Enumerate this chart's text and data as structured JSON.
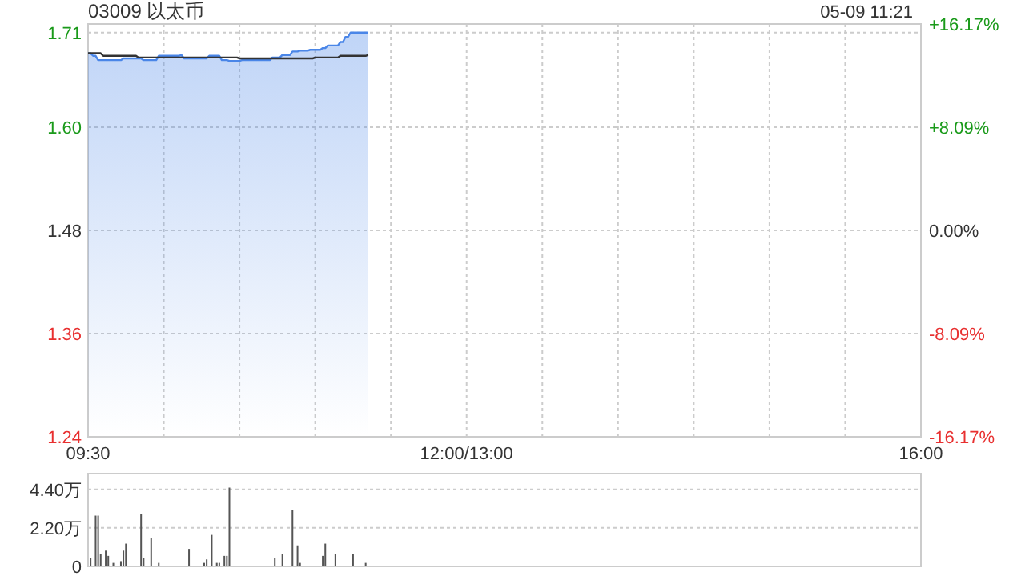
{
  "chart_data": [
    {
      "type": "area",
      "title": "03009 以太币",
      "annotations": [
        "05-09 11:21"
      ],
      "categories": [
        "09:30",
        null,
        null,
        null,
        null,
        null,
        null,
        null,
        null,
        null,
        null,
        null,
        null,
        null,
        null,
        null,
        null,
        null,
        null,
        null,
        null,
        null,
        null,
        null,
        null,
        null,
        null,
        null,
        null,
        null,
        null,
        null,
        null,
        null,
        null,
        null,
        null,
        null,
        null,
        null,
        null,
        null,
        null,
        null,
        null,
        null,
        null,
        null,
        null,
        null,
        null,
        null,
        null,
        null,
        null,
        null,
        null,
        null,
        null,
        null,
        null,
        null,
        null,
        null,
        null,
        null,
        null,
        null,
        null,
        null,
        null,
        null,
        null,
        null,
        null,
        null,
        null,
        null,
        null,
        null,
        null,
        null,
        null,
        null,
        null,
        null,
        null,
        null,
        null,
        null,
        null,
        null,
        null,
        null,
        null,
        null,
        null,
        null,
        null,
        null,
        null,
        null,
        null,
        null,
        null,
        null,
        null,
        null,
        null,
        null,
        null,
        null,
        null,
        null,
        null,
        null,
        null,
        null,
        null,
        null,
        null,
        null,
        null,
        null,
        null,
        null,
        null,
        null,
        null,
        null,
        null,
        null,
        null,
        null,
        null,
        null,
        null,
        null,
        null,
        null,
        null,
        null,
        null,
        null,
        null,
        null,
        null,
        null,
        null,
        null,
        "12:00/13:00",
        null,
        null,
        null,
        null,
        null,
        null,
        null,
        null,
        null,
        null,
        null,
        null,
        null,
        null,
        null,
        null,
        null,
        null,
        null,
        null,
        null,
        null,
        null,
        null,
        null,
        null,
        null,
        null,
        null,
        null,
        null,
        null,
        null,
        null,
        null,
        null,
        null,
        null,
        null,
        null,
        null,
        null,
        null,
        null,
        null,
        null,
        null,
        null,
        null,
        null,
        null,
        null,
        null,
        null,
        null,
        null,
        null,
        null,
        null,
        null,
        null,
        null,
        null,
        null,
        null,
        null,
        null,
        null,
        null,
        null,
        null,
        null,
        null,
        null,
        null,
        null,
        null,
        null,
        null,
        null,
        null,
        null,
        null,
        null,
        null,
        null,
        null,
        null,
        null,
        null,
        null,
        null,
        null,
        null,
        null,
        null,
        null,
        null,
        null,
        null,
        null,
        null,
        null,
        null,
        null,
        null,
        null,
        null,
        null,
        null,
        null,
        null,
        null,
        null,
        null,
        null,
        null,
        null,
        null,
        null,
        null,
        null,
        null,
        null,
        null,
        null,
        null,
        null,
        null,
        null,
        null,
        null,
        null,
        null,
        null,
        null,
        null,
        null,
        null,
        null,
        null,
        null,
        null,
        null,
        null,
        null,
        null,
        null,
        null,
        null,
        null,
        null,
        null,
        null,
        null,
        null,
        null,
        null,
        null,
        null,
        null,
        null,
        null,
        null,
        null,
        null,
        null,
        null,
        null,
        null,
        null,
        null,
        null,
        null,
        null,
        null,
        null,
        null,
        null,
        "16:00"
      ],
      "ylim": [
        1.24,
        1.72
      ],
      "yticks": [
        1.24,
        1.36,
        1.48,
        {
          "value": 1.6,
          "label": "1.60"
        },
        1.71
      ],
      "y2lim": [
        -16.17,
        16.17
      ],
      "y2ticks": [
        {
          "value": -16.17,
          "label": "-16.17%"
        },
        {
          "value": -8.09,
          "label": "-8.09%"
        },
        {
          "value": 0,
          "label": "0.00%"
        },
        {
          "value": 8.09,
          "label": "+8.09%"
        },
        {
          "value": 16.17,
          "label": "+16.17%"
        }
      ],
      "grid": true,
      "tick_labels": "xy",
      "series": [
        {
          "type": "area",
          "color": "#4a86e8",
          "values": [
            1.686,
            1.686,
            1.683,
            1.683,
            1.678,
            1.678,
            1.678,
            1.678,
            1.678,
            1.678,
            1.678,
            1.678,
            1.678,
            1.678,
            1.68,
            1.68,
            1.68,
            1.68,
            1.68,
            1.68,
            1.68,
            1.68,
            1.678,
            1.678,
            1.678,
            1.678,
            1.678,
            1.678,
            1.683,
            1.683,
            1.683,
            1.683,
            1.683,
            1.683,
            1.683,
            1.683,
            1.683,
            1.684,
            1.68,
            1.68,
            1.68,
            1.68,
            1.68,
            1.68,
            1.68,
            1.68,
            1.68,
            1.68,
            1.683,
            1.683,
            1.683,
            1.683,
            1.683,
            1.678,
            1.678,
            1.678,
            1.677,
            1.677,
            1.677,
            1.677,
            1.677,
            1.678,
            1.678,
            1.678,
            1.678,
            1.678,
            1.678,
            1.678,
            1.678,
            1.678,
            1.678,
            1.678,
            1.678,
            1.681,
            1.681,
            1.681,
            1.681,
            1.684,
            1.684,
            1.684,
            1.684,
            1.688,
            1.688,
            1.688,
            1.689,
            1.689,
            1.689,
            1.689,
            1.69,
            1.69,
            1.69,
            1.69,
            1.69,
            1.692,
            1.692,
            1.695,
            1.695,
            1.695,
            1.695,
            1.695,
            1.699,
            1.699,
            1.705,
            1.705,
            1.71,
            1.71,
            1.71,
            1.71,
            1.71,
            1.71,
            1.71,
            1.71,
            null,
            null,
            null,
            null,
            null,
            null,
            null,
            null,
            null,
            null,
            null,
            null,
            null,
            null,
            null,
            null,
            null,
            null,
            null,
            null,
            null,
            null,
            null,
            null,
            null,
            null,
            null,
            null,
            null,
            null,
            null,
            null,
            null,
            null,
            null,
            null,
            null,
            null,
            null,
            null,
            null,
            null,
            null,
            null,
            null,
            null,
            null,
            null,
            null,
            null,
            null,
            null,
            null,
            null,
            null,
            null,
            null,
            null,
            null,
            null,
            null,
            null,
            null,
            null,
            null,
            null,
            null,
            null,
            null,
            null,
            null,
            null,
            null,
            null,
            null,
            null,
            null,
            null,
            null,
            null,
            null,
            null,
            null,
            null,
            null,
            null,
            null,
            null,
            null,
            null,
            null,
            null,
            null,
            null,
            null,
            null,
            null,
            null,
            null,
            null,
            null,
            null,
            null,
            null,
            null,
            null,
            null,
            null,
            null,
            null,
            null,
            null,
            null,
            null,
            null,
            null,
            null,
            null,
            null,
            null,
            null,
            null,
            null,
            null,
            null,
            null,
            null,
            null,
            null,
            null,
            null,
            null,
            null,
            null,
            null,
            null,
            null,
            null,
            null,
            null,
            null,
            null,
            null,
            null,
            null,
            null,
            null,
            null,
            null,
            null,
            null,
            null,
            null,
            null,
            null,
            null,
            null,
            null,
            null,
            null,
            null,
            null,
            null,
            null,
            null,
            null,
            null,
            null,
            null,
            null,
            null,
            null,
            null,
            null,
            null,
            null,
            null,
            null,
            null,
            null,
            null,
            null,
            null,
            null,
            null,
            null,
            null,
            null,
            null,
            null,
            null,
            null,
            null,
            null,
            null,
            null,
            null,
            null,
            null,
            null,
            null,
            null,
            null,
            null,
            null,
            null,
            null,
            null,
            null,
            null,
            null,
            null,
            null,
            null,
            null,
            null,
            null,
            null,
            null
          ]
        },
        {
          "type": "line",
          "color": "#333333",
          "values": [
            1.686,
            1.686,
            1.686,
            1.686,
            1.686,
            1.686,
            1.683,
            1.683,
            1.683,
            1.683,
            1.683,
            1.683,
            1.683,
            1.683,
            1.683,
            1.683,
            1.683,
            1.683,
            1.683,
            1.683,
            1.681,
            1.681,
            1.681,
            1.681,
            1.681,
            1.681,
            1.681,
            1.681,
            1.681,
            1.681,
            1.681,
            1.681,
            1.681,
            1.681,
            1.681,
            1.681,
            1.681,
            1.681,
            1.681,
            1.681,
            1.681,
            1.681,
            1.681,
            1.681,
            1.681,
            1.681,
            1.681,
            1.681,
            1.681,
            1.681,
            1.681,
            1.681,
            1.681,
            1.681,
            1.681,
            1.681,
            1.681,
            1.681,
            1.681,
            1.681,
            1.68,
            1.68,
            1.68,
            1.68,
            1.68,
            1.68,
            1.68,
            1.68,
            1.68,
            1.68,
            1.68,
            1.68,
            1.68,
            1.68,
            1.68,
            1.68,
            1.68,
            1.68,
            1.68,
            1.68,
            1.68,
            1.68,
            1.68,
            1.68,
            1.68,
            1.68,
            1.68,
            1.68,
            1.68,
            1.68,
            1.681,
            1.681,
            1.681,
            1.681,
            1.681,
            1.681,
            1.681,
            1.681,
            1.681,
            1.681,
            1.683,
            1.683,
            1.683,
            1.683,
            1.683,
            1.683,
            1.683,
            1.683,
            1.683,
            1.683,
            1.683,
            1.684,
            null,
            null,
            null,
            null,
            null,
            null,
            null,
            null,
            null,
            null,
            null,
            null,
            null,
            null,
            null,
            null,
            null,
            null,
            null,
            null,
            null,
            null,
            null,
            null,
            null,
            null,
            null,
            null,
            null,
            null,
            null,
            null,
            null,
            null,
            null,
            null,
            null,
            null,
            null,
            null,
            null,
            null,
            null,
            null,
            null,
            null,
            null,
            null,
            null,
            null,
            null,
            null,
            null,
            null,
            null,
            null,
            null,
            null,
            null,
            null,
            null,
            null,
            null,
            null,
            null,
            null,
            null,
            null,
            null,
            null,
            null,
            null,
            null,
            null,
            null,
            null,
            null,
            null,
            null,
            null,
            null,
            null,
            null,
            null,
            null,
            null,
            null,
            null,
            null,
            null,
            null,
            null,
            null,
            null,
            null,
            null,
            null,
            null,
            null,
            null,
            null,
            null,
            null,
            null,
            null,
            null,
            null,
            null,
            null,
            null,
            null,
            null,
            null,
            null,
            null,
            null,
            null,
            null,
            null,
            null,
            null,
            null,
            null,
            null,
            null,
            null,
            null,
            null,
            null,
            null,
            null,
            null,
            null,
            null,
            null,
            null,
            null,
            null,
            null,
            null,
            null,
            null,
            null,
            null,
            null,
            null,
            null,
            null,
            null,
            null,
            null,
            null,
            null,
            null,
            null,
            null,
            null,
            null,
            null,
            null,
            null,
            null,
            null,
            null,
            null,
            null,
            null,
            null,
            null,
            null,
            null,
            null,
            null,
            null,
            null,
            null,
            null,
            null,
            null,
            null,
            null,
            null,
            null,
            null,
            null,
            null,
            null,
            null,
            null,
            null,
            null,
            null,
            null,
            null,
            null,
            null,
            null,
            null,
            null,
            null,
            null,
            null,
            null,
            null,
            null,
            null,
            null,
            null,
            null,
            null,
            null,
            null,
            null,
            null,
            null,
            null,
            null,
            null,
            null
          ]
        }
      ]
    },
    {
      "type": "bar",
      "color": "#555555",
      "ylim": [
        0,
        5.3
      ],
      "yticks": [
        {
          "value": 0,
          "label": "0"
        },
        {
          "value": 2.2,
          "label": "2.20万"
        },
        {
          "value": 4.4,
          "label": "4.40万"
        }
      ],
      "grid": "y",
      "categories": [
        null,
        null,
        null,
        null,
        null,
        null,
        null,
        null,
        null,
        null,
        null,
        null,
        null,
        null,
        null,
        null,
        null,
        null,
        null,
        null,
        null,
        null,
        null,
        null,
        null,
        null,
        null,
        null,
        null,
        null,
        null,
        null,
        null,
        null,
        null,
        null,
        null,
        null,
        null,
        null,
        null,
        null,
        null,
        null,
        null,
        null,
        null,
        null,
        null,
        null,
        null,
        null,
        null,
        null,
        null,
        null,
        null,
        null,
        null,
        null,
        null,
        null,
        null,
        null,
        null,
        null,
        null,
        null,
        null,
        null,
        null,
        null,
        null,
        null,
        null,
        null,
        null,
        null,
        null,
        null,
        null,
        null,
        null,
        null,
        null,
        null,
        null,
        null,
        null,
        null,
        null,
        null,
        null,
        null,
        null,
        null,
        null,
        null,
        null,
        null,
        null,
        null,
        null,
        null,
        null,
        null,
        null,
        null,
        null,
        null,
        null,
        null,
        null,
        null,
        null,
        null,
        null,
        null,
        null,
        null,
        null,
        null,
        null,
        null,
        null,
        null,
        null,
        null,
        null,
        null,
        null,
        null,
        null,
        null,
        null,
        null,
        null,
        null,
        null,
        null,
        null,
        null,
        null,
        null,
        null,
        null,
        null,
        null,
        null,
        null,
        null,
        null,
        null,
        null,
        null,
        null,
        null,
        null,
        null,
        null,
        null,
        null,
        null,
        null,
        null,
        null,
        null,
        null,
        null,
        null,
        null,
        null,
        null,
        null,
        null,
        null,
        null,
        null,
        null,
        null,
        null,
        null,
        null,
        null,
        null,
        null,
        null,
        null,
        null,
        null,
        null,
        null,
        null,
        null,
        null,
        null,
        null,
        null,
        null,
        null,
        null,
        null,
        null,
        null,
        null,
        null,
        null,
        null,
        null,
        null,
        null,
        null,
        null,
        null,
        null,
        null,
        null,
        null,
        null,
        null,
        null,
        null,
        null,
        null,
        null,
        null,
        null,
        null,
        null,
        null,
        null,
        null,
        null,
        null,
        null,
        null,
        null,
        null,
        null,
        null,
        null,
        null,
        null,
        null,
        null,
        null,
        null,
        null,
        null,
        null,
        null,
        null,
        null,
        null,
        null,
        null,
        null,
        null,
        null,
        null,
        null,
        null,
        null,
        null,
        null,
        null,
        null,
        null,
        null,
        null,
        null,
        null,
        null,
        null,
        null,
        null,
        null,
        null,
        null,
        null,
        null,
        null,
        null,
        null,
        null,
        null,
        null,
        null,
        null,
        null,
        null,
        null,
        null,
        null,
        null,
        null,
        null,
        null,
        null,
        null,
        null,
        null,
        null,
        null,
        null,
        null,
        null,
        null,
        null,
        null,
        null,
        null,
        null,
        null,
        null,
        null,
        null,
        null,
        null,
        null,
        null,
        null,
        null,
        null,
        null,
        null,
        null,
        null,
        null,
        null,
        null
      ],
      "values": [
        null,
        0.5,
        null,
        2.9,
        2.9,
        0.7,
        null,
        0.9,
        0.6,
        null,
        0.2,
        null,
        null,
        0.3,
        0.9,
        1.3,
        null,
        null,
        null,
        null,
        null,
        3.0,
        0.5,
        null,
        null,
        1.6,
        null,
        null,
        0.2,
        null,
        null,
        null,
        null,
        null,
        null,
        null,
        null,
        null,
        null,
        null,
        1.0,
        null,
        null,
        null,
        null,
        null,
        0.2,
        0.4,
        null,
        1.8,
        null,
        0.2,
        0.2,
        null,
        0.6,
        0.6,
        4.5,
        null,
        null,
        null,
        null,
        null,
        null,
        null,
        null,
        null,
        null,
        null,
        null,
        null,
        null,
        null,
        null,
        null,
        0.5,
        null,
        null,
        0.7,
        null,
        null,
        null,
        3.2,
        null,
        1.2,
        0.2,
        null,
        null,
        null,
        null,
        null,
        null,
        null,
        null,
        0.6,
        1.3,
        null,
        null,
        null,
        0.7,
        null,
        null,
        null,
        null,
        null,
        null,
        0.7,
        null,
        null,
        null,
        null,
        0.2,
        null,
        null,
        null,
        null,
        null,
        null,
        null,
        null,
        null,
        null,
        null,
        null,
        null,
        null,
        null,
        null,
        null,
        null,
        null,
        null,
        null,
        null,
        null,
        null,
        null,
        null,
        null,
        null,
        null,
        null,
        null,
        null,
        null,
        null,
        null,
        null,
        null,
        null,
        null,
        null,
        null,
        null,
        null,
        null,
        null,
        null,
        null,
        null,
        null,
        null,
        null,
        null,
        null,
        null,
        null,
        null,
        null,
        null,
        null,
        null,
        null,
        null,
        null,
        null,
        null,
        null,
        null,
        null,
        null,
        null,
        null,
        null,
        null,
        null,
        null,
        null,
        null,
        null,
        null,
        null,
        null,
        null,
        null,
        null,
        null,
        null,
        null,
        null,
        null,
        null,
        null,
        null,
        null,
        null,
        null,
        null,
        null,
        null,
        null,
        null,
        null,
        null,
        null,
        null,
        null,
        null,
        null,
        null,
        null,
        null,
        null,
        null,
        null,
        null,
        null,
        null,
        null,
        null,
        null,
        null,
        null,
        null,
        null,
        null,
        null,
        null,
        null,
        null,
        null,
        null,
        null,
        null,
        null,
        null,
        null,
        null,
        null,
        null,
        null,
        null,
        null,
        null,
        null,
        null,
        null,
        null,
        null,
        null,
        null,
        null,
        null,
        null,
        null,
        null,
        null,
        null,
        null,
        null,
        null,
        null,
        null,
        null,
        null,
        null,
        null,
        null,
        null,
        null,
        null,
        null,
        null,
        null,
        null,
        null,
        null,
        null,
        null,
        null,
        null,
        null,
        null,
        null,
        null,
        null,
        null,
        null,
        null,
        null,
        null,
        null,
        null,
        null,
        null,
        null,
        null,
        null,
        null,
        null,
        null,
        null,
        null,
        null,
        null,
        null,
        null,
        null,
        null,
        null,
        null,
        null,
        null,
        null,
        null,
        null,
        null,
        null,
        null,
        null,
        null,
        null
      ]
    }
  ]
}
